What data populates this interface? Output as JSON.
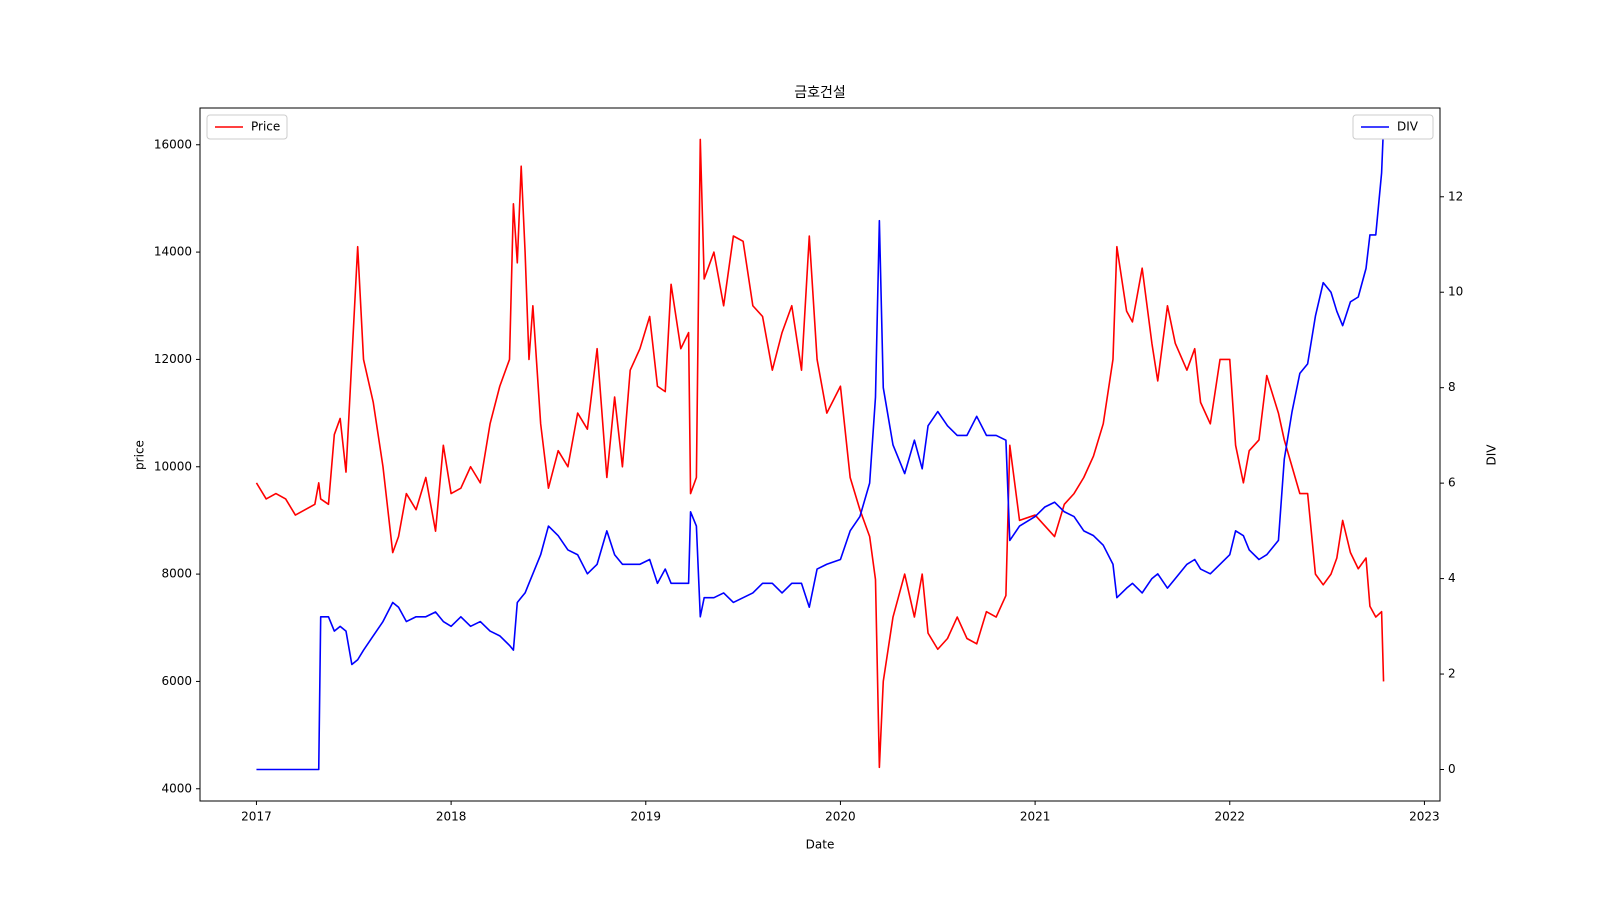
{
  "chart_data": {
    "type": "line",
    "title": "금호건설",
    "xlabel": "Date",
    "ylabel": "price",
    "y2label": "DIV",
    "x": [
      2017.0,
      2017.05,
      2017.1,
      2017.15,
      2017.2,
      2017.25,
      2017.3,
      2017.32,
      2017.33,
      2017.37,
      2017.4,
      2017.43,
      2017.46,
      2017.49,
      2017.52,
      2017.55,
      2017.6,
      2017.65,
      2017.7,
      2017.73,
      2017.77,
      2017.82,
      2017.87,
      2017.92,
      2017.96,
      2018.0,
      2018.05,
      2018.1,
      2018.15,
      2018.2,
      2018.25,
      2018.3,
      2018.32,
      2018.34,
      2018.36,
      2018.38,
      2018.4,
      2018.42,
      2018.46,
      2018.5,
      2018.55,
      2018.6,
      2018.65,
      2018.7,
      2018.75,
      2018.8,
      2018.84,
      2018.88,
      2018.92,
      2018.97,
      2019.02,
      2019.06,
      2019.1,
      2019.13,
      2019.18,
      2019.22,
      2019.23,
      2019.26,
      2019.28,
      2019.3,
      2019.35,
      2019.4,
      2019.45,
      2019.5,
      2019.55,
      2019.6,
      2019.65,
      2019.7,
      2019.75,
      2019.8,
      2019.84,
      2019.88,
      2019.93,
      2020.0,
      2020.05,
      2020.1,
      2020.15,
      2020.18,
      2020.2,
      2020.22,
      2020.27,
      2020.33,
      2020.38,
      2020.42,
      2020.45,
      2020.5,
      2020.55,
      2020.6,
      2020.65,
      2020.7,
      2020.75,
      2020.8,
      2020.85,
      2020.87,
      2020.92,
      2021.0,
      2021.05,
      2021.1,
      2021.15,
      2021.2,
      2021.25,
      2021.3,
      2021.35,
      2021.4,
      2021.42,
      2021.47,
      2021.5,
      2021.55,
      2021.6,
      2021.63,
      2021.68,
      2021.72,
      2021.78,
      2021.82,
      2021.85,
      2021.9,
      2021.95,
      2022.0,
      2022.03,
      2022.07,
      2022.1,
      2022.15,
      2022.19,
      2022.25,
      2022.28,
      2022.32,
      2022.36,
      2022.4,
      2022.44,
      2022.48,
      2022.52,
      2022.55,
      2022.58,
      2022.62,
      2022.66,
      2022.7,
      2022.72,
      2022.75,
      2022.78,
      2022.79
    ],
    "series": [
      {
        "name": "Price",
        "color": "#ff0000",
        "axis": "y",
        "legend_loc": "upper left",
        "values": [
          9700,
          9400,
          9500,
          9400,
          9100,
          9200,
          9300,
          9700,
          9400,
          9300,
          10600,
          10900,
          9900,
          12000,
          14100,
          12000,
          11200,
          10000,
          8400,
          8700,
          9500,
          9200,
          9800,
          8800,
          10400,
          9500,
          9600,
          10000,
          9700,
          10800,
          11500,
          12000,
          14900,
          13800,
          15600,
          14000,
          12000,
          13000,
          10800,
          9600,
          10300,
          10000,
          11000,
          10700,
          12200,
          9800,
          11300,
          10000,
          11800,
          12200,
          12800,
          11500,
          11400,
          13400,
          12200,
          12500,
          9500,
          9800,
          16100,
          13500,
          14000,
          13000,
          14300,
          14200,
          13000,
          12800,
          11800,
          12500,
          13000,
          11800,
          14300,
          12000,
          11000,
          11500,
          9800,
          9200,
          8700,
          7900,
          4400,
          6000,
          7200,
          8000,
          7200,
          8000,
          6900,
          6600,
          6800,
          7200,
          6800,
          6700,
          7300,
          7200,
          7600,
          10400,
          9000,
          9100,
          8900,
          8700,
          9300,
          9500,
          9800,
          10200,
          10800,
          12000,
          14100,
          12900,
          12700,
          13700,
          12300,
          11600,
          13000,
          12300,
          11800,
          12200,
          11200,
          10800,
          12000,
          12000,
          10400,
          9700,
          10300,
          10500,
          11700,
          11000,
          10500,
          10000,
          9500,
          9500,
          8000,
          7800,
          8000,
          8300,
          9000,
          8400,
          8100,
          8300,
          7400,
          7200,
          7300,
          6000
        ]
      },
      {
        "name": "DIV",
        "color": "#0000ff",
        "axis": "y2",
        "legend_loc": "upper right",
        "values": [
          0,
          0,
          0,
          0,
          0,
          0,
          0,
          0,
          3.2,
          3.2,
          2.9,
          3.0,
          2.9,
          2.2,
          2.3,
          2.5,
          2.8,
          3.1,
          3.5,
          3.4,
          3.1,
          3.2,
          3.2,
          3.3,
          3.1,
          3.0,
          3.2,
          3.0,
          3.1,
          2.9,
          2.8,
          2.6,
          2.5,
          3.5,
          3.6,
          3.7,
          3.9,
          4.1,
          4.5,
          5.1,
          4.9,
          4.6,
          4.5,
          4.1,
          4.3,
          5.0,
          4.5,
          4.3,
          4.3,
          4.3,
          4.4,
          3.9,
          4.2,
          3.9,
          3.9,
          3.9,
          5.4,
          5.1,
          3.2,
          3.6,
          3.6,
          3.7,
          3.5,
          3.6,
          3.7,
          3.9,
          3.9,
          3.7,
          3.9,
          3.9,
          3.4,
          4.2,
          4.3,
          4.4,
          5.0,
          5.3,
          6.0,
          7.8,
          11.5,
          8.0,
          6.8,
          6.2,
          6.9,
          6.3,
          7.2,
          7.5,
          7.2,
          7.0,
          7.0,
          7.4,
          7.0,
          7.0,
          6.9,
          4.8,
          5.1,
          5.3,
          5.5,
          5.6,
          5.4,
          5.3,
          5.0,
          4.9,
          4.7,
          4.3,
          3.6,
          3.8,
          3.9,
          3.7,
          4.0,
          4.1,
          3.8,
          4.0,
          4.3,
          4.4,
          4.2,
          4.1,
          4.3,
          4.5,
          5.0,
          4.9,
          4.6,
          4.4,
          4.5,
          4.8,
          6.5,
          7.5,
          8.3,
          8.5,
          9.5,
          10.2,
          10.0,
          9.6,
          9.3,
          9.8,
          9.9,
          10.5,
          11.2,
          11.2,
          12.5,
          13.5
        ]
      }
    ],
    "xlim": [
      2016.71,
      2023.08
    ],
    "xticks": [
      2017,
      2018,
      2019,
      2020,
      2021,
      2022,
      2023
    ],
    "ylim": [
      3772,
      16685
    ],
    "yticks": [
      4000,
      6000,
      8000,
      10000,
      12000,
      14000,
      16000
    ],
    "y2lim": [
      -0.66,
      13.86
    ],
    "y2ticks": [
      0,
      2,
      4,
      6,
      8,
      10,
      12
    ]
  }
}
